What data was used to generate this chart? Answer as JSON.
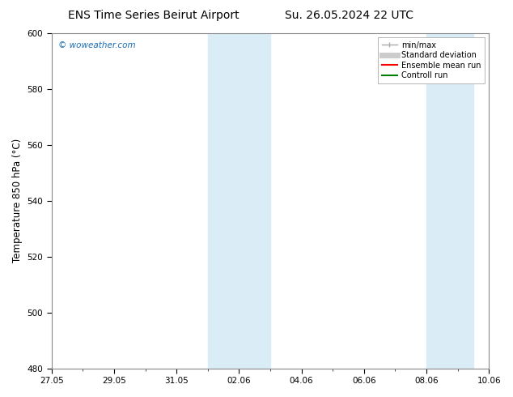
{
  "title_left": "ENS Time Series Beirut Airport",
  "title_right": "Su. 26.05.2024 22 UTC",
  "ylabel": "Temperature 850 hPa (°C)",
  "ylim": [
    480,
    600
  ],
  "yticks": [
    480,
    500,
    520,
    540,
    560,
    580,
    600
  ],
  "xtick_labels": [
    "27.05",
    "29.05",
    "31.05",
    "02.06",
    "04.06",
    "06.06",
    "08.06",
    "10.06"
  ],
  "xtick_positions": [
    0,
    2,
    4,
    6,
    8,
    10,
    12,
    14
  ],
  "x_min": 0,
  "x_max": 14,
  "shaded_bands": [
    {
      "x_start": 5.0,
      "x_end": 7.0,
      "color": "#daedf7"
    },
    {
      "x_start": 12.0,
      "x_end": 13.5,
      "color": "#daedf7"
    }
  ],
  "watermark_text": "© woweather.com",
  "watermark_color": "#1a6eb5",
  "legend_entries": [
    {
      "label": "min/max",
      "color": "#aaaaaa",
      "lw": 1.0
    },
    {
      "label": "Standard deviation",
      "color": "#cccccc",
      "lw": 4
    },
    {
      "label": "Ensemble mean run",
      "color": "#ff0000",
      "lw": 1.5
    },
    {
      "label": "Controll run",
      "color": "#008000",
      "lw": 1.5
    }
  ],
  "bg_color": "#ffffff",
  "plot_bg_color": "#ffffff",
  "border_color": "#888888",
  "title_fontsize": 10,
  "tick_fontsize": 7.5,
  "ylabel_fontsize": 8.5,
  "legend_fontsize": 7
}
